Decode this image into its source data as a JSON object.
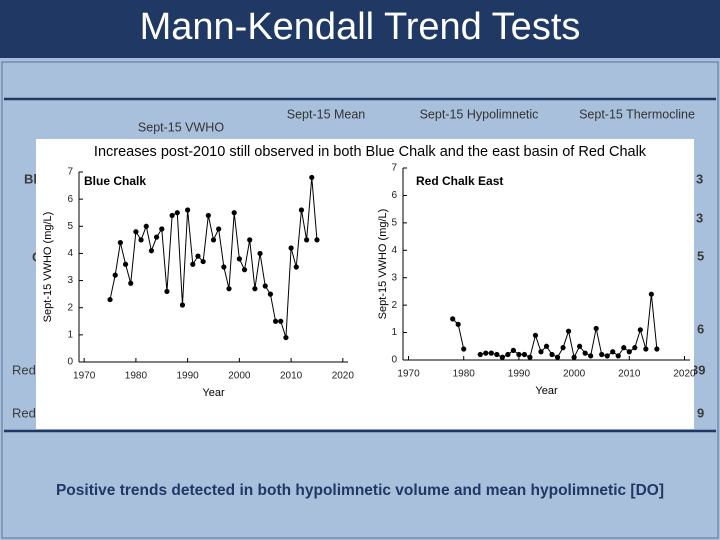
{
  "slide": {
    "title": "Mann-Kendall Trend Tests",
    "table": {
      "headers": [
        "Sept-15 VWHO",
        "Sept-15 Mean",
        "Sept-15 Hypolimnetic",
        "Sept-15 Thermocline"
      ],
      "row_fragments": [
        "Bl",
        "C",
        "Red",
        "Red"
      ],
      "value_fragments": [
        "3",
        "3",
        "5",
        "6",
        "39",
        "9"
      ]
    },
    "banner": "Increases post-2010 still observed in both Blue Chalk and the east basin of Red Chalk",
    "footer": "Positive trends detected in both hypolimnetic volume and mean hypolimnetic [DO]"
  },
  "chart_data": [
    {
      "type": "line",
      "title": "Blue Chalk",
      "x_label": "Year",
      "y_label": "Sept-15 VWHO (mg/L)",
      "color": "#000000",
      "x": [
        1975,
        1976,
        1977,
        1978,
        1979,
        1980,
        1981,
        1982,
        1983,
        1984,
        1985,
        1986,
        1987,
        1988,
        1989,
        1990,
        1991,
        1992,
        1993,
        1994,
        1995,
        1996,
        1997,
        1998,
        1999,
        2000,
        2001,
        2002,
        2003,
        2004,
        2005,
        2006,
        2007,
        2008,
        2009,
        2010,
        2011,
        2012,
        2013,
        2014,
        2015
      ],
      "values": [
        2.3,
        3.2,
        4.4,
        3.6,
        2.9,
        4.8,
        4.5,
        5.0,
        4.1,
        4.6,
        4.9,
        2.6,
        5.4,
        5.5,
        2.1,
        5.6,
        3.6,
        3.9,
        3.7,
        5.4,
        4.5,
        4.9,
        3.5,
        2.7,
        5.5,
        3.8,
        3.4,
        4.5,
        2.7,
        4.0,
        2.8,
        2.5,
        1.5,
        1.5,
        0.9,
        4.2,
        3.5,
        5.6,
        4.5,
        6.8,
        4.5
      ],
      "xlim": [
        1969,
        2021
      ],
      "xticks": [
        1970,
        1980,
        1990,
        2000,
        2010,
        2020
      ],
      "ylim": [
        0,
        7
      ],
      "yticks": [
        0,
        1,
        2,
        3,
        4,
        5,
        6,
        7
      ]
    },
    {
      "type": "line",
      "title": "Red Chalk East",
      "x_label": "Year",
      "y_label": "Sept-15 VWHO (mg/L)",
      "color": "#000000",
      "x": [
        1978,
        1979,
        1980,
        1982,
        1983,
        1984,
        1985,
        1986,
        1987,
        1988,
        1989,
        1990,
        1991,
        1992,
        1993,
        1994,
        1995,
        1996,
        1997,
        1998,
        1999,
        2000,
        2001,
        2002,
        2003,
        2004,
        2005,
        2006,
        2007,
        2008,
        2009,
        2010,
        2011,
        2012,
        2013,
        2014,
        2015
      ],
      "values": [
        1.5,
        1.3,
        0.4,
        null,
        0.2,
        0.25,
        0.25,
        0.2,
        0.1,
        0.2,
        0.35,
        0.2,
        0.2,
        0.1,
        0.9,
        0.3,
        0.5,
        0.2,
        0.1,
        0.45,
        1.05,
        0.1,
        0.5,
        0.25,
        0.15,
        1.15,
        0.2,
        0.15,
        0.3,
        0.15,
        0.45,
        0.3,
        0.45,
        1.1,
        0.4,
        2.4,
        0.4
      ],
      "xlim": [
        1969,
        2021
      ],
      "xticks": [
        1970,
        1980,
        1990,
        2000,
        2010,
        2020
      ],
      "ylim": [
        0,
        7
      ],
      "yticks": [
        0,
        1,
        2,
        3,
        4,
        5,
        6,
        7
      ]
    }
  ]
}
